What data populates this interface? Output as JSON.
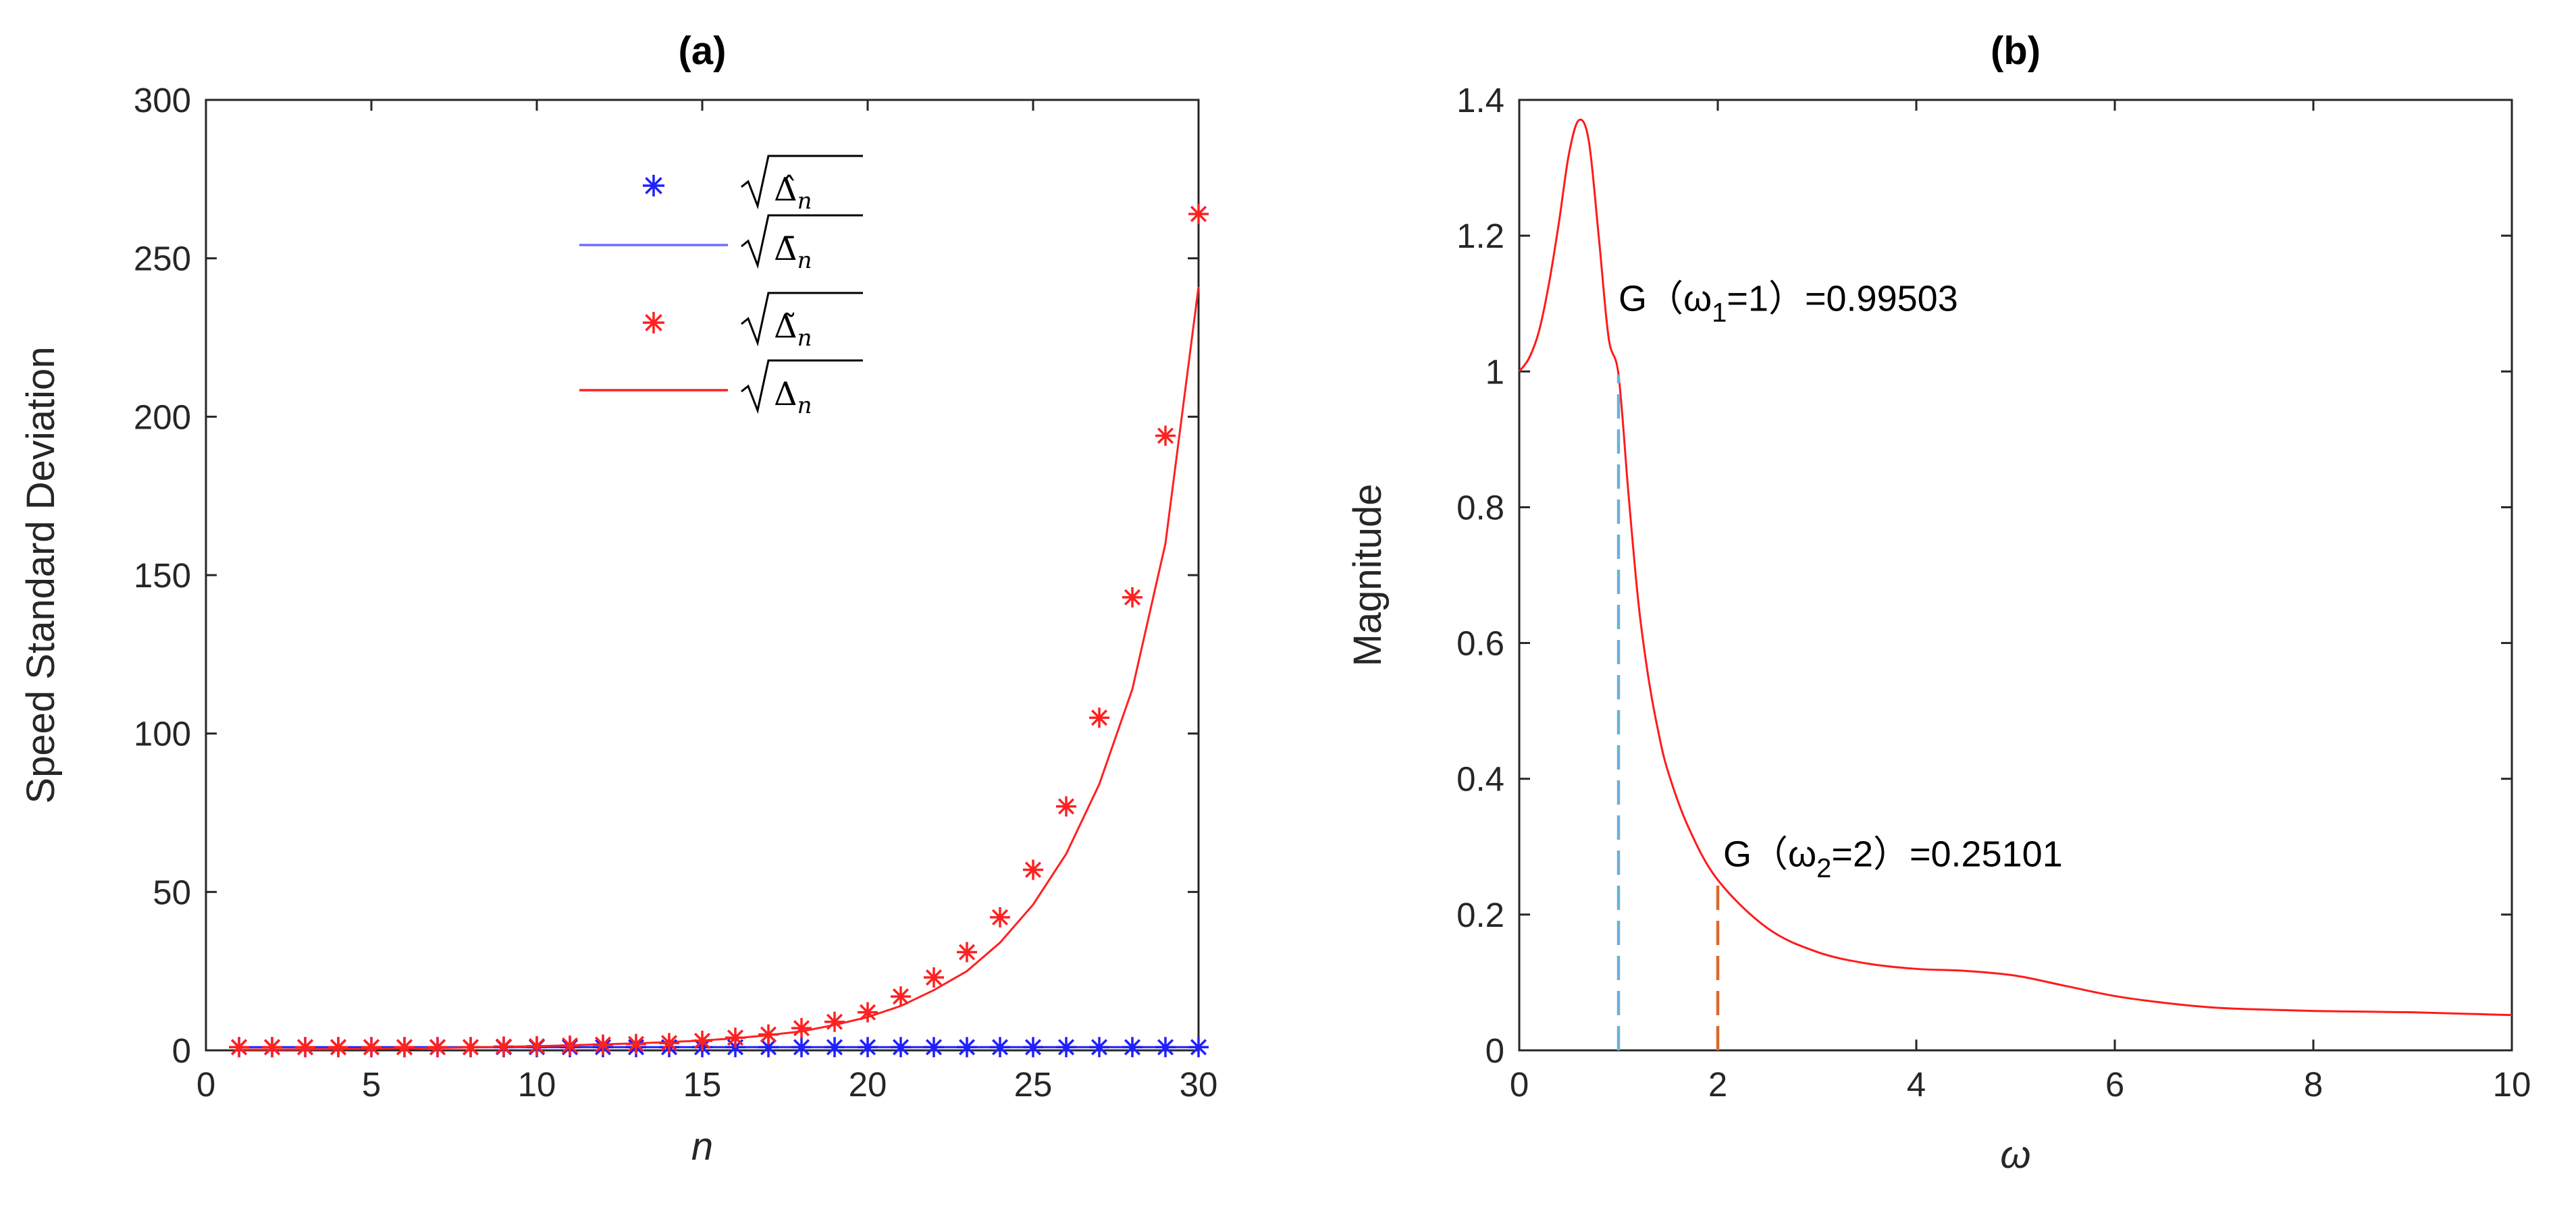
{
  "chart_data": [
    {
      "type": "scatter+line",
      "title": "(a)",
      "xlabel": "n",
      "ylabel": "Speed Standard Deviation",
      "xlim": [
        0,
        30
      ],
      "ylim": [
        0,
        300
      ],
      "xticks": [
        "0",
        "5",
        "10",
        "15",
        "20",
        "25",
        "30"
      ],
      "yticks": [
        "0",
        "50",
        "100",
        "150",
        "200",
        "250",
        "300"
      ],
      "colors": {
        "blue": "#1f1fff",
        "red": "#ff2020"
      },
      "x": [
        1,
        2,
        3,
        4,
        5,
        6,
        7,
        8,
        9,
        10,
        11,
        12,
        13,
        14,
        15,
        16,
        17,
        18,
        19,
        20,
        21,
        22,
        23,
        24,
        25,
        26,
        27,
        28,
        29,
        30
      ],
      "series": [
        {
          "name": "sqrt(hat-Delta_n) markers",
          "style": "marker-star",
          "color": "blue",
          "values": [
            1,
            1,
            1,
            1,
            1,
            1,
            1,
            1,
            1,
            1,
            1,
            1,
            1,
            1,
            1,
            1,
            1,
            1,
            1,
            1,
            1,
            1,
            1,
            1,
            1,
            1,
            1,
            1,
            1,
            1
          ]
        },
        {
          "name": "sqrt(bar-Delta_n) line",
          "style": "line",
          "color": "blue",
          "values": [
            1,
            1,
            1,
            1,
            1,
            1,
            1,
            1,
            1,
            1,
            1,
            1,
            1,
            1,
            1,
            1,
            1,
            1,
            1,
            1,
            1,
            1,
            1,
            1,
            1,
            1,
            1,
            1,
            1,
            1
          ]
        },
        {
          "name": "sqrt(tilde-Delta_n) markers",
          "style": "marker-star",
          "color": "red",
          "values": [
            1,
            1,
            1,
            1,
            1,
            1,
            1,
            1,
            1.2,
            1.3,
            1.5,
            1.8,
            2,
            2.3,
            3,
            4,
            5,
            7,
            9,
            12,
            17,
            23,
            31,
            42,
            57,
            77,
            105,
            143,
            194,
            264
          ]
        },
        {
          "name": "sqrt(Delta_n) line",
          "style": "line",
          "color": "red",
          "values": [
            0.2,
            0.25,
            0.3,
            0.4,
            0.5,
            0.6,
            0.75,
            0.9,
            1.1,
            1.3,
            1.6,
            1.9,
            2.2,
            2.6,
            3.1,
            3.8,
            4.8,
            6,
            8,
            10.5,
            14,
            19,
            25,
            34,
            46,
            62,
            84,
            114,
            160,
            241
          ]
        }
      ],
      "legend": {
        "placement": "top-center",
        "entries": [
          {
            "mark": "Δ̂",
            "text": "n"
          },
          {
            "mark": "Δ̄",
            "text": "n"
          },
          {
            "mark": "Δ̃",
            "text": "n"
          },
          {
            "mark": "Δ",
            "text": "n"
          }
        ]
      }
    },
    {
      "type": "line",
      "title": "(b)",
      "xlabel": "ω",
      "ylabel": "Magnitude",
      "xlim": [
        0,
        10
      ],
      "ylim": [
        0,
        1.4
      ],
      "xticks": [
        "0",
        "2",
        "4",
        "6",
        "8",
        "10"
      ],
      "yticks": [
        "0",
        "0.2",
        "0.4",
        "0.6",
        "0.8",
        "1",
        "1.2",
        "1.4"
      ],
      "series": [
        {
          "name": "G(ω)",
          "color": "#ff1a1a",
          "x": [
            0,
            0.1,
            0.2,
            0.3,
            0.4,
            0.5,
            0.6,
            0.7,
            0.8,
            0.9,
            1.0,
            1.1,
            1.2,
            1.3,
            1.4,
            1.5,
            1.7,
            2.0,
            2.5,
            3.0,
            3.5,
            4.0,
            4.5,
            5.0,
            5.5,
            6.0,
            6.5,
            7.0,
            7.5,
            8.0,
            8.5,
            9.0,
            9.5,
            10.0
          ],
          "values": [
            1.0,
            1.02,
            1.06,
            1.13,
            1.22,
            1.32,
            1.37,
            1.34,
            1.2,
            1.05,
            0.995,
            0.82,
            0.66,
            0.55,
            0.47,
            0.41,
            0.33,
            0.251,
            0.18,
            0.145,
            0.128,
            0.12,
            0.117,
            0.11,
            0.095,
            0.08,
            0.07,
            0.063,
            0.06,
            0.058,
            0.057,
            0.056,
            0.054,
            0.052
          ]
        }
      ],
      "markers": [
        {
          "x": 1,
          "y": 0.99503,
          "color": "#6fb0d8",
          "label_pre": "G（ω",
          "sub": "1",
          "label_post": "=1）=0.99503"
        },
        {
          "x": 2,
          "y": 0.25101,
          "color": "#d9682a",
          "label_pre": "G（ω",
          "sub": "2",
          "label_post": "=2）=0.25101"
        }
      ]
    }
  ]
}
